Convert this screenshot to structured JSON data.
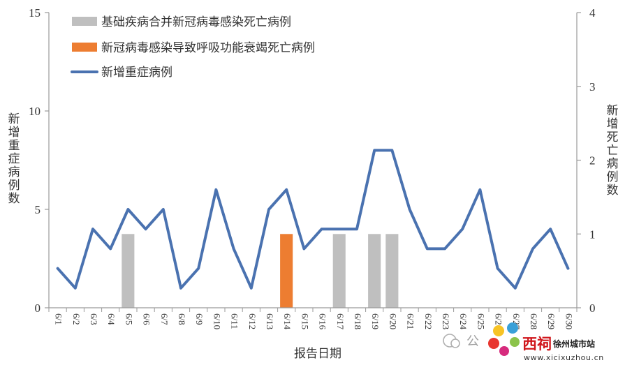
{
  "chart_data": {
    "type": "bar+line",
    "x_label": "报告日期",
    "categories": [
      "6/1",
      "6/2",
      "6/3",
      "6/4",
      "6/5",
      "6/6",
      "6/7",
      "6/8",
      "6/9",
      "6/10",
      "6/11",
      "6/12",
      "6/13",
      "6/14",
      "6/15",
      "6/16",
      "6/17",
      "6/18",
      "6/19",
      "6/20",
      "6/21",
      "6/22",
      "6/23",
      "6/24",
      "6/25",
      "6/26",
      "6/27",
      "6/28",
      "6/29",
      "6/30"
    ],
    "left_axis": {
      "label": "新增重症病例数",
      "ylim": [
        0,
        15
      ],
      "ticks": [
        "0",
        "5",
        "10",
        "15"
      ]
    },
    "right_axis": {
      "label": "新增死亡病例数",
      "ylim": [
        0,
        4
      ],
      "ticks": [
        "0",
        "1",
        "2",
        "3",
        "4"
      ]
    },
    "series": [
      {
        "name": "基础疾病合并新冠病毒感染死亡病例",
        "type": "bar",
        "axis": "right",
        "color": "#bfbfbf",
        "values": [
          0,
          0,
          0,
          0,
          1,
          0,
          0,
          0,
          0,
          0,
          0,
          0,
          0,
          0,
          0,
          0,
          1,
          0,
          1,
          1,
          0,
          0,
          0,
          0,
          0,
          0,
          0,
          0,
          0,
          0
        ]
      },
      {
        "name": "新冠病毒感染导致呼吸功能衰竭死亡病例",
        "type": "bar",
        "axis": "right",
        "color": "#ed7d31",
        "values": [
          0,
          0,
          0,
          0,
          0,
          0,
          0,
          0,
          0,
          0,
          0,
          0,
          0,
          1,
          0,
          0,
          0,
          0,
          0,
          0,
          0,
          0,
          0,
          0,
          0,
          0,
          0,
          0,
          0,
          0
        ]
      },
      {
        "name": "新增重症病例",
        "type": "line",
        "axis": "left",
        "color": "#4a72b0",
        "values": [
          2,
          1,
          4,
          3,
          5,
          4,
          5,
          1,
          2,
          6,
          3,
          1,
          5,
          6,
          3,
          4,
          4,
          4,
          8,
          8,
          5,
          3,
          3,
          4,
          6,
          2,
          1,
          3,
          4,
          2
        ]
      }
    ],
    "legend_position": "top-left",
    "grid": false
  },
  "watermark": {
    "wechat_text": "公",
    "brand_text": "西祠",
    "site_text": "徐州城市站",
    "url_text": "www.xicixuzhou.cn"
  }
}
